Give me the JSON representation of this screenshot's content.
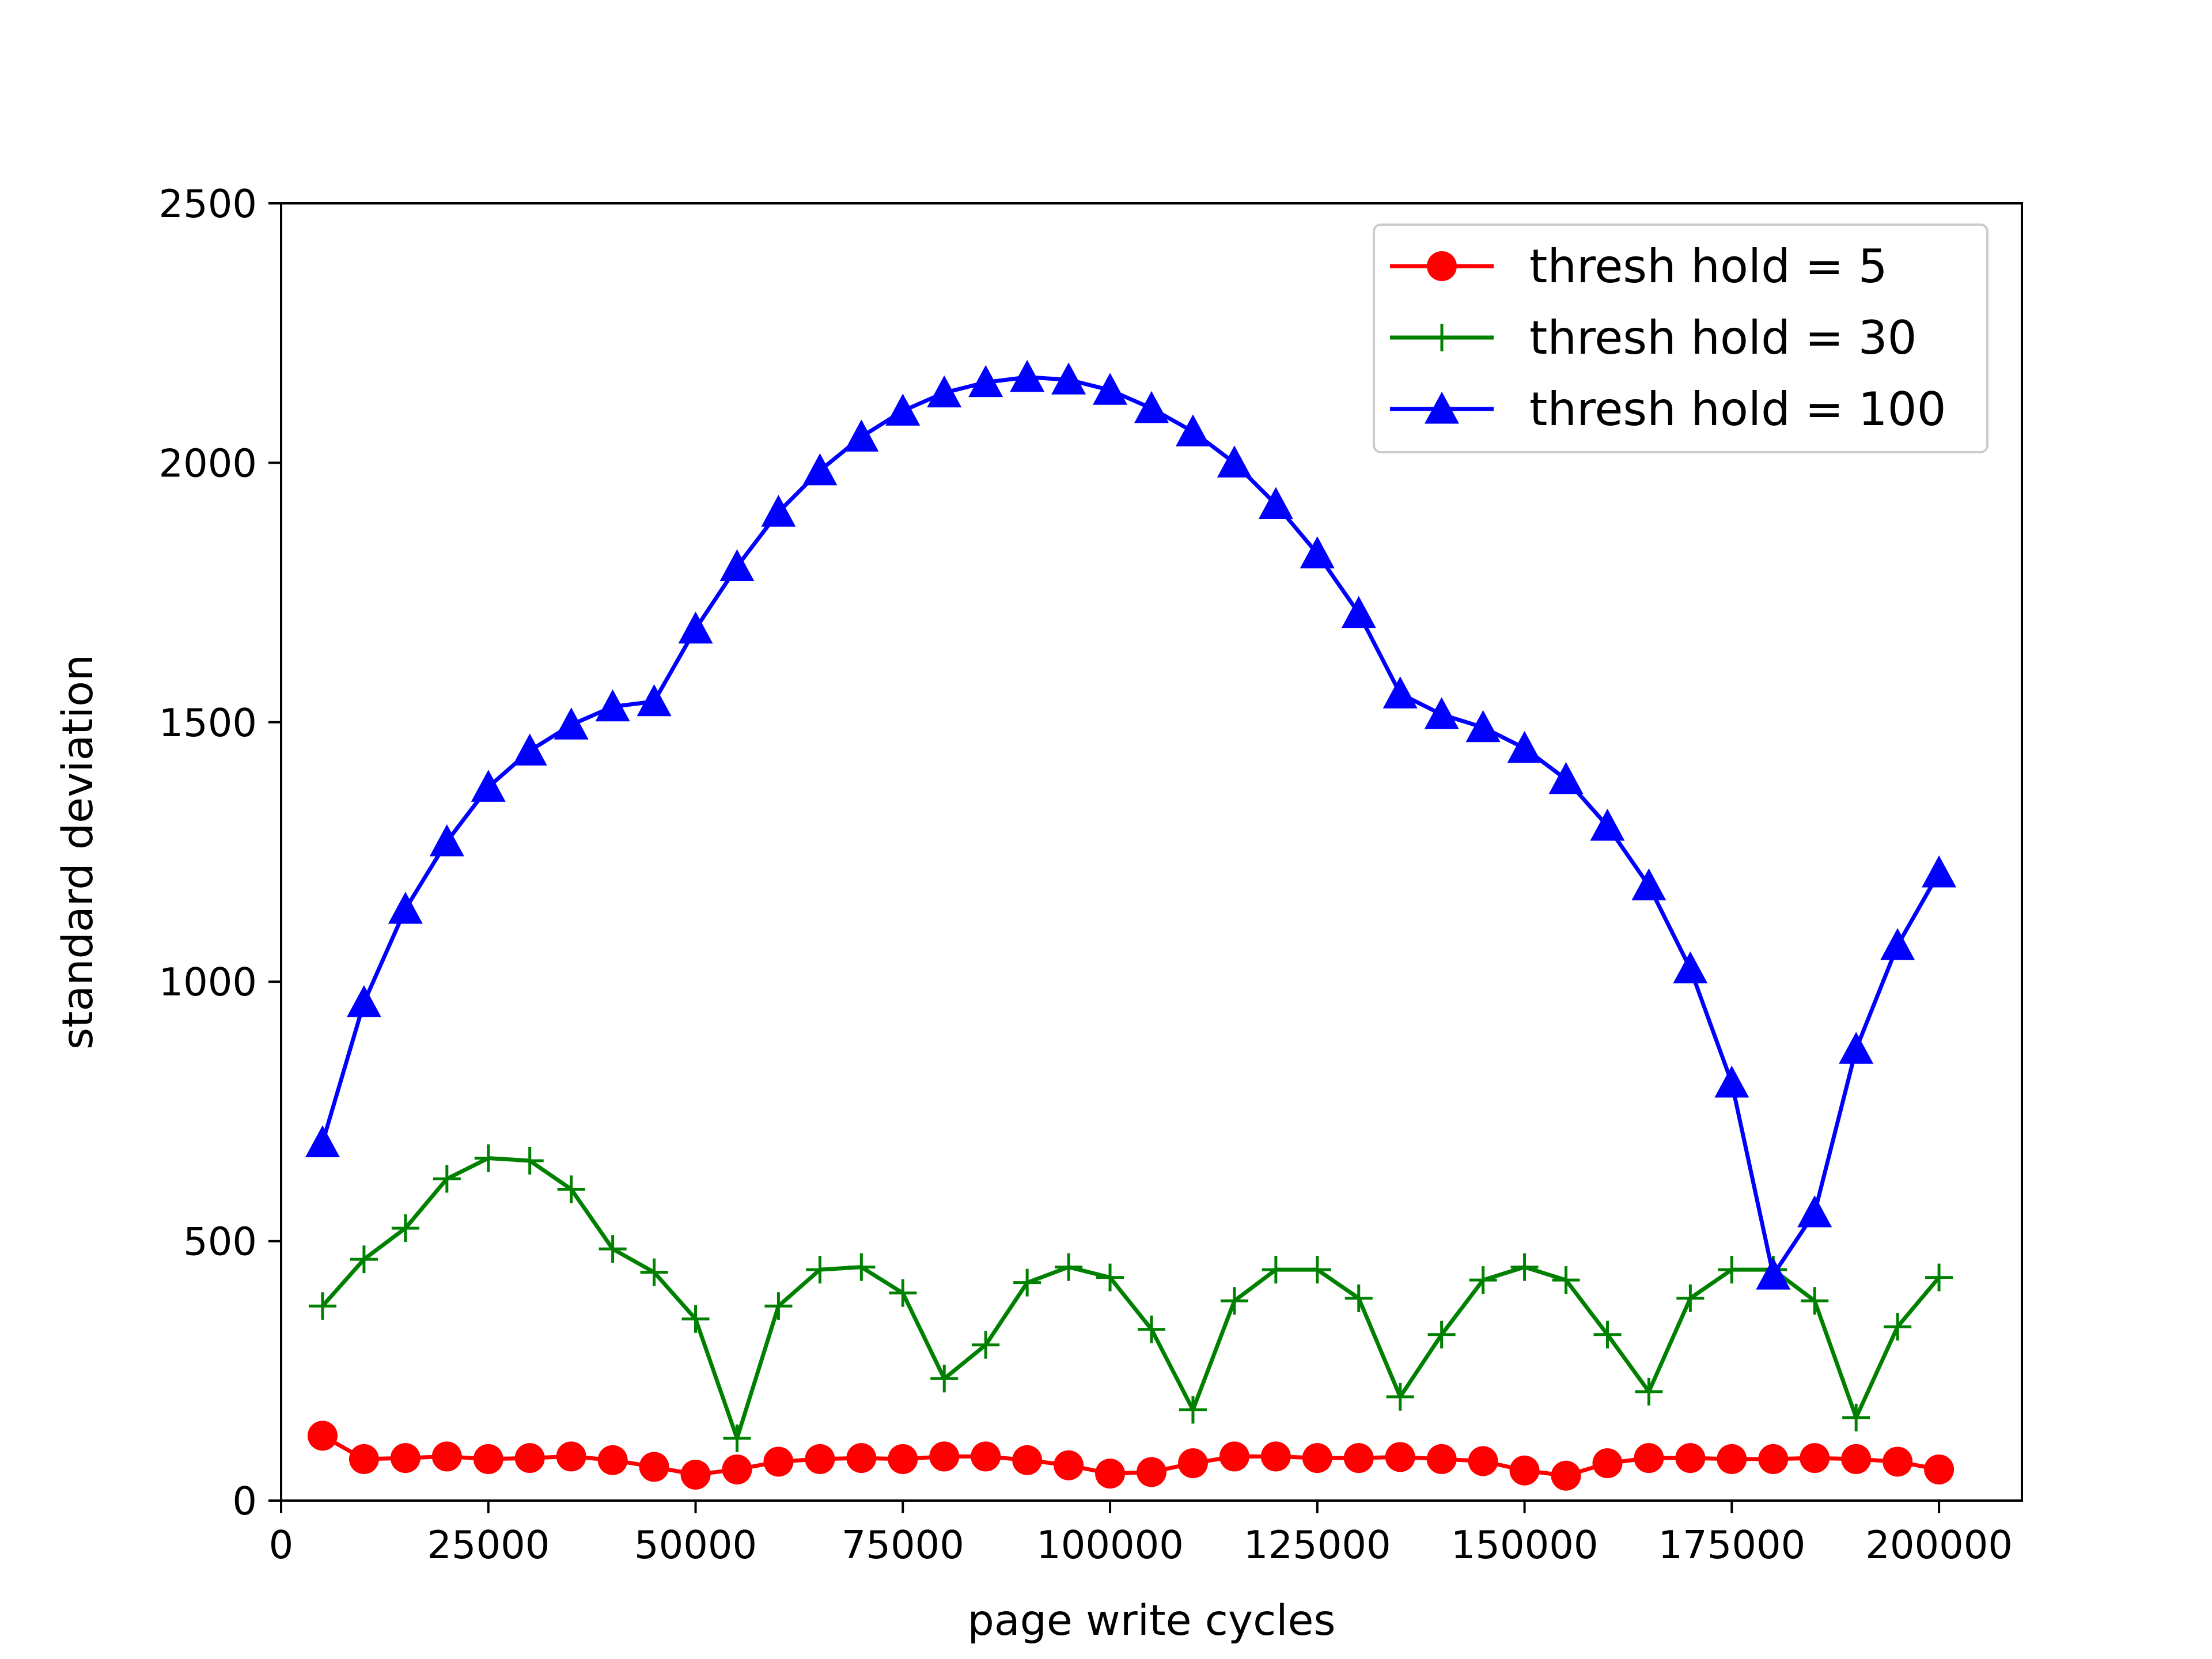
{
  "chart_data": {
    "type": "line",
    "title": "",
    "xlabel": "page write cycles",
    "ylabel": "standard deviation",
    "xlim": [
      0,
      210000
    ],
    "ylim": [
      0,
      2500
    ],
    "xticks": [
      0,
      25000,
      50000,
      75000,
      100000,
      125000,
      150000,
      175000,
      200000
    ],
    "yticks": [
      0,
      500,
      1000,
      1500,
      2000,
      2500
    ],
    "grid": false,
    "legend_position": "top-right",
    "x": [
      5000,
      10000,
      15000,
      20000,
      25000,
      30000,
      35000,
      40000,
      45000,
      50000,
      55000,
      60000,
      65000,
      70000,
      75000,
      80000,
      85000,
      90000,
      95000,
      100000,
      105000,
      110000,
      115000,
      120000,
      125000,
      130000,
      135000,
      140000,
      145000,
      150000,
      155000,
      160000,
      165000,
      170000,
      175000,
      180000,
      185000,
      190000,
      195000,
      200000
    ],
    "series": [
      {
        "name": "thresh hold = 5",
        "color": "#ff0000",
        "marker": "circle",
        "values": [
          125,
          80,
          82,
          85,
          80,
          82,
          85,
          78,
          65,
          50,
          60,
          75,
          80,
          82,
          80,
          85,
          85,
          78,
          68,
          52,
          55,
          72,
          85,
          85,
          82,
          82,
          84,
          80,
          76,
          58,
          48,
          72,
          82,
          82,
          80,
          80,
          82,
          80,
          75,
          60
        ]
      },
      {
        "name": "thresh hold = 30",
        "color": "#008000",
        "marker": "plus",
        "values": [
          375,
          465,
          525,
          620,
          660,
          655,
          600,
          485,
          440,
          350,
          120,
          375,
          445,
          450,
          400,
          235,
          300,
          420,
          450,
          430,
          330,
          175,
          385,
          445,
          445,
          390,
          200,
          320,
          425,
          450,
          425,
          320,
          210,
          390,
          445,
          445,
          385,
          160,
          335,
          430
        ]
      },
      {
        "name": "thresh hold = 100",
        "color": "#0000ff",
        "marker": "triangle",
        "values": [
          690,
          960,
          1140,
          1270,
          1375,
          1445,
          1495,
          1530,
          1540,
          1680,
          1800,
          1905,
          1985,
          2050,
          2100,
          2135,
          2155,
          2165,
          2160,
          2140,
          2105,
          2060,
          2000,
          1920,
          1825,
          1710,
          1555,
          1515,
          1490,
          1450,
          1390,
          1300,
          1185,
          1025,
          805,
          435,
          555,
          870,
          1070,
          1210
        ]
      }
    ]
  }
}
